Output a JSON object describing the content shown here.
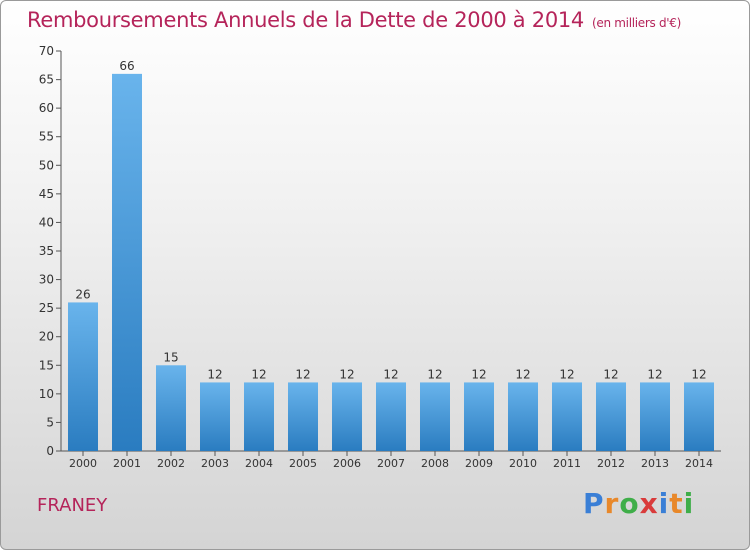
{
  "header": {
    "title": "Remboursements Annuels de la Dette de 2000 à 2014",
    "unit": "(en milliers d'€)"
  },
  "footer": {
    "commune": "FRANEY",
    "brand_letters": [
      "P",
      "r",
      "o",
      "x",
      "i",
      "t",
      "i"
    ],
    "brand_colors": [
      "#3a7fd6",
      "#e8882a",
      "#3fae49",
      "#d93b3b",
      "#3a7fd6",
      "#e8882a",
      "#3fae49"
    ]
  },
  "colors": {
    "bar_top": "#69b4ec",
    "bar_bottom": "#2a7cc0",
    "title": "#b5245a"
  },
  "chart_data": {
    "type": "bar",
    "title": "Remboursements Annuels de la Dette de 2000 à 2014",
    "xlabel": "",
    "ylabel": "",
    "categories": [
      "2000",
      "2001",
      "2002",
      "2003",
      "2004",
      "2005",
      "2006",
      "2007",
      "2008",
      "2009",
      "2010",
      "2011",
      "2012",
      "2013",
      "2014"
    ],
    "values": [
      26,
      66,
      15,
      12,
      12,
      12,
      12,
      12,
      12,
      12,
      12,
      12,
      12,
      12,
      12
    ],
    "ylim": [
      0,
      70
    ],
    "yticks": [
      0,
      5,
      10,
      15,
      20,
      25,
      30,
      35,
      40,
      45,
      50,
      55,
      60,
      65,
      70
    ],
    "grid": false,
    "legend": "none"
  }
}
